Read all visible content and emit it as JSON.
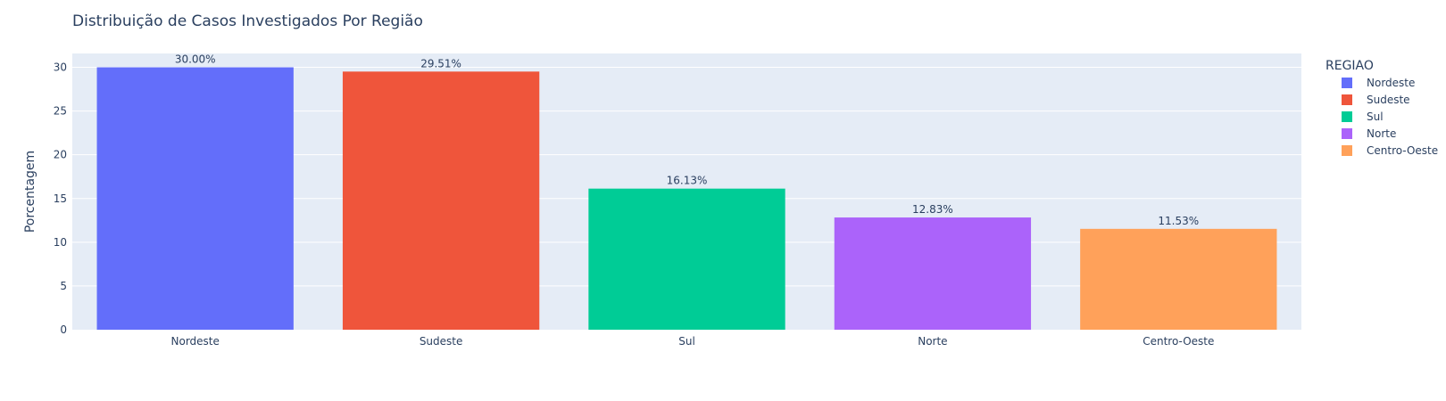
{
  "chart_data": {
    "type": "bar",
    "title": "Distribuição de Casos Investigados Por Região",
    "xlabel": "",
    "ylabel": "Porcentagem",
    "ylim": [
      0,
      31.58
    ],
    "yticks": [
      0,
      5,
      10,
      15,
      20,
      25,
      30
    ],
    "grid": true,
    "legend_title": "REGIAO",
    "legend_placement": "right",
    "categories": [
      "Nordeste",
      "Sudeste",
      "Sul",
      "Norte",
      "Centro-Oeste"
    ],
    "series": [
      {
        "name": "Nordeste",
        "category": "Nordeste",
        "value": 30.0,
        "label": "30.00%",
        "color": "#636efa"
      },
      {
        "name": "Sudeste",
        "category": "Sudeste",
        "value": 29.51,
        "label": "29.51%",
        "color": "#ef553b"
      },
      {
        "name": "Sul",
        "category": "Sul",
        "value": 16.13,
        "label": "16.13%",
        "color": "#00cc96"
      },
      {
        "name": "Norte",
        "category": "Norte",
        "value": 12.83,
        "label": "12.83%",
        "color": "#ab63fa"
      },
      {
        "name": "Centro-Oeste",
        "category": "Centro-Oeste",
        "value": 11.53,
        "label": "11.53%",
        "color": "#ffa15a"
      }
    ],
    "plot_background": "#e5ecf6"
  }
}
